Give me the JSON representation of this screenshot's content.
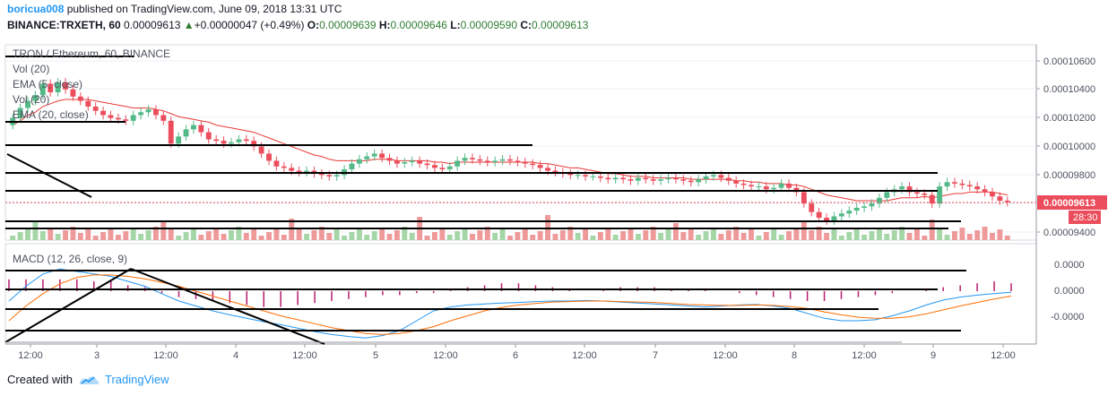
{
  "header": {
    "user": "boricua008",
    "published": " published on TradingView.com, June 09, 2018 13:31 UTC",
    "symbol": "BINANCE:TRXETH, 60",
    "last": "0.00009613",
    "arrow": "▲",
    "change": "+0.00000047 (+0.49%)",
    "o_label": "O:",
    "o": "0.00009639",
    "h_label": "H:",
    "h": "0.00009646",
    "l_label": "L:",
    "l": "0.00009590",
    "c_label": "C:",
    "c": "0.00009613"
  },
  "legend": {
    "title": "TRON / Ethereum, 60, BINANCE",
    "vol1": "Vol (20)",
    "ema5": "EMA (5, close)",
    "vol2": "Vol (20)",
    "ema20": "EMA (20, close)",
    "macd": "MACD (12, 26, close, 9)"
  },
  "price_axis": {
    "labels": [
      "0.00010600",
      "0.00010400",
      "0.00010200",
      "0.00010000",
      "0.00009800",
      "0.00009400"
    ],
    "current_price": "0.00009613",
    "countdown": "28:30"
  },
  "macd_axis": {
    "labels": [
      "0.0000",
      "0.0000",
      "-0.0000"
    ]
  },
  "time_axis": {
    "labels": [
      "12:00",
      "3",
      "12:00",
      "4",
      "12:00",
      "5",
      "12:00",
      "6",
      "12:00",
      "7",
      "12:00",
      "8",
      "12:00",
      "9",
      "12:00"
    ]
  },
  "colors": {
    "up": "#53b987",
    "down": "#eb4d5c",
    "ema": "#e53935",
    "vol_up": "#a5d6a7",
    "vol_down": "#ef9a9a",
    "macd_line": "#2196f3",
    "signal_line": "#ff6d00",
    "hist": "#b71c6c",
    "accent": "#2196f3"
  },
  "footer": {
    "created": "Created with",
    "brand": "TradingView"
  },
  "chart_data": {
    "type": "candlestick",
    "title": "TRON / Ethereum, 60, BINANCE",
    "ylim": [
      9.36e-05,
      0.0001073
    ],
    "price_close": [
      0.000102,
      0.0001027,
      0.0001032,
      0.0001036,
      0.0001044,
      0.0001038,
      0.0001045,
      0.000104,
      0.0001035,
      0.0001032,
      0.0001028,
      0.0001025,
      0.0001022,
      0.000102,
      0.0001019,
      0.0001018,
      0.0001022,
      0.0001024,
      0.0001026,
      0.0001022,
      0.0001018,
      0.0001002,
      0.0001007,
      0.0001012,
      0.0001015,
      0.000101,
      0.0001005,
      0.0001004,
      0.0001002,
      0.0001003,
      0.0001005,
      0.0001004,
      0.0001,
      9.95e-05,
      9.9e-05,
      9.86e-05,
      9.85e-05,
      9.83e-05,
      9.82e-05,
      9.83e-05,
      9.81e-05,
      9.8e-05,
      9.79e-05,
      9.8e-05,
      9.84e-05,
      9.88e-05,
      9.91e-05,
      9.93e-05,
      9.95e-05,
      9.92e-05,
      9.9e-05,
      9.88e-05,
      9.89e-05,
      9.9e-05,
      9.88e-05,
      9.87e-05,
      9.85e-05,
      9.84e-05,
      9.86e-05,
      9.9e-05,
      9.92e-05,
      9.91e-05,
      9.9e-05,
      9.89e-05,
      9.9e-05,
      9.91e-05,
      9.9e-05,
      9.89e-05,
      9.88e-05,
      9.87e-05,
      9.85e-05,
      9.83e-05,
      9.82e-05,
      9.81e-05,
      9.8e-05,
      9.8e-05,
      9.79e-05,
      9.79e-05,
      9.78e-05,
      9.77e-05,
      9.78e-05,
      9.77e-05,
      9.76e-05,
      9.78e-05,
      9.77e-05,
      9.76e-05,
      9.77e-05,
      9.78e-05,
      9.77e-05,
      9.76e-05,
      9.75e-05,
      9.77e-05,
      9.79e-05,
      9.8e-05,
      9.78e-05,
      9.76e-05,
      9.74e-05,
      9.73e-05,
      9.72e-05,
      9.72e-05,
      9.7e-05,
      9.71e-05,
      9.74e-05,
      9.71e-05,
      9.68e-05,
      9.6e-05,
      9.54e-05,
      9.5e-05,
      9.48e-05,
      9.51e-05,
      9.53e-05,
      9.55e-05,
      9.57e-05,
      9.58e-05,
      9.6e-05,
      9.64e-05,
      9.68e-05,
      9.7e-05,
      9.72e-05,
      9.68e-05,
      9.67e-05,
      9.66e-05,
      9.6e-05,
      9.72e-05,
      9.75e-05,
      9.74e-05,
      9.73e-05,
      9.72e-05,
      9.7e-05,
      9.68e-05,
      9.65e-05,
      9.62e-05,
      9.61e-05
    ],
    "ema_20": [
      0.0001015,
      0.0001018,
      0.0001022,
      0.0001024,
      0.0001028,
      0.000103,
      0.0001032,
      0.0001033,
      0.0001033,
      0.0001033,
      0.0001033,
      0.0001032,
      0.0001031,
      0.000103,
      0.0001029,
      0.0001028,
      0.0001027,
      0.0001027,
      0.0001027,
      0.0001026,
      0.0001025,
      0.0001023,
      0.0001021,
      0.000102,
      0.0001019,
      0.0001018,
      0.0001017,
      0.0001015,
      0.0001014,
      0.0001013,
      0.0001012,
      0.0001011,
      0.000101,
      0.0001008,
      0.0001006,
      0.0001004,
      0.0001002,
      0.0001,
      9.98e-05,
      9.96e-05,
      9.94e-05,
      9.93e-05,
      9.91e-05,
      9.9e-05,
      9.9e-05,
      9.9e-05,
      9.9e-05,
      9.9e-05,
      9.91e-05,
      9.91e-05,
      9.91e-05,
      9.9e-05,
      9.9e-05,
      9.9e-05,
      9.9e-05,
      9.9e-05,
      9.89e-05,
      9.89e-05,
      9.88e-05,
      9.89e-05,
      9.89e-05,
      9.89e-05,
      9.89e-05,
      9.89e-05,
      9.89e-05,
      9.89e-05,
      9.89e-05,
      9.89e-05,
      9.89e-05,
      9.89e-05,
      9.88e-05,
      9.88e-05,
      9.87e-05,
      9.86e-05,
      9.85e-05,
      9.85e-05,
      9.84e-05,
      9.83e-05,
      9.82e-05,
      9.81e-05,
      9.81e-05,
      9.8e-05,
      9.79e-05,
      9.79e-05,
      9.79e-05,
      9.78e-05,
      9.78e-05,
      9.78e-05,
      9.78e-05,
      9.78e-05,
      9.77e-05,
      9.77e-05,
      9.77e-05,
      9.77e-05,
      9.77e-05,
      9.77e-05,
      9.76e-05,
      9.76e-05,
      9.75e-05,
      9.75e-05,
      9.74e-05,
      9.74e-05,
      9.74e-05,
      9.73e-05,
      9.73e-05,
      9.72e-05,
      9.7e-05,
      9.68e-05,
      9.66e-05,
      9.65e-05,
      9.64e-05,
      9.63e-05,
      9.62e-05,
      9.62e-05,
      9.62e-05,
      9.62e-05,
      9.62e-05,
      9.63e-05,
      9.64e-05,
      9.64e-05,
      9.64e-05,
      9.65e-05,
      9.64e-05,
      9.65e-05,
      9.66e-05,
      9.67e-05,
      9.67e-05,
      9.68e-05,
      9.68e-05,
      9.68e-05,
      9.68e-05,
      9.67e-05,
      9.66e-05
    ],
    "macd": [
      -20,
      10,
      35,
      45,
      40,
      35,
      30,
      20,
      10,
      -5,
      -20,
      -30,
      -40,
      -48,
      -55,
      -62,
      -68,
      -75,
      -82,
      -88,
      -92,
      -95,
      -90,
      -80,
      -60,
      -40,
      -32,
      -28,
      -26,
      -24,
      -23,
      -21,
      -20,
      -20,
      -19,
      -20,
      -22,
      -24,
      -26,
      -28,
      -30,
      -32,
      -30,
      -28,
      -27,
      -30,
      -35,
      -45,
      -55,
      -60,
      -60,
      -58,
      -50,
      -40,
      -28,
      -18,
      -12,
      -8,
      -5,
      -2
    ],
    "signal": [
      -60,
      -30,
      -5,
      15,
      28,
      33,
      33,
      30,
      25,
      18,
      10,
      0,
      -10,
      -20,
      -30,
      -40,
      -50,
      -58,
      -66,
      -74,
      -80,
      -86,
      -88,
      -86,
      -80,
      -72,
      -60,
      -50,
      -40,
      -33,
      -28,
      -25,
      -22,
      -21,
      -20,
      -20,
      -21,
      -22,
      -23,
      -25,
      -27,
      -28,
      -29,
      -29,
      -28,
      -29,
      -31,
      -35,
      -42,
      -48,
      -53,
      -55,
      -55,
      -52,
      -46,
      -38,
      -30,
      -23,
      -16,
      -10
    ],
    "hist": [
      6,
      6,
      6,
      6,
      6,
      5,
      5,
      3,
      2,
      -1,
      -3,
      -4,
      -5,
      -6,
      -7,
      -8,
      -8,
      -7,
      -6,
      -5,
      -4,
      -3,
      -2,
      -2,
      -1,
      -1,
      1,
      2,
      3,
      4,
      4,
      3,
      2,
      1,
      0,
      1,
      2,
      2,
      2,
      1,
      1,
      1,
      0,
      -1,
      -2,
      -3,
      -4,
      -5,
      -5,
      -4,
      -3,
      -2,
      -1,
      0,
      1,
      2,
      3,
      4,
      5,
      4
    ],
    "levels": [
      9.76e-05,
      9.72e-05,
      9.68e-05,
      9.445e-05,
      9.38e-05
    ],
    "xlabel": "",
    "ylabel": ""
  }
}
